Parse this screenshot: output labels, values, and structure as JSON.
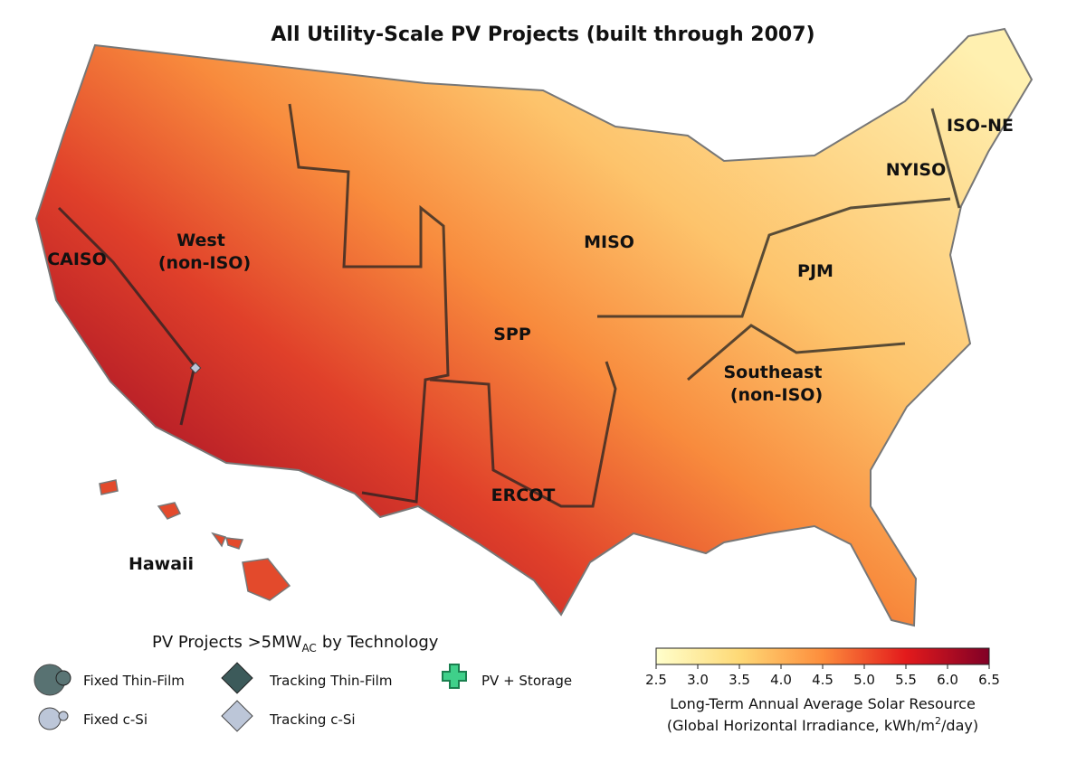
{
  "title": "All Utility-Scale PV Projects (built through 2007)",
  "regions": [
    [
      "CAISO"
    ],
    [
      "West",
      "(non-ISO)"
    ],
    [
      "MISO"
    ],
    [
      "PJM"
    ],
    [
      "NYISO"
    ],
    [
      "ISO-NE"
    ],
    [
      "SPP"
    ],
    [
      "Southeast",
      "(non-ISO)"
    ],
    [
      "ERCOT"
    ],
    [
      "Hawaii"
    ]
  ],
  "legend": {
    "title": [
      "PV Projects >5MW",
      "AC",
      "by Technology"
    ],
    "entries": [
      "Fixed Thin-Film",
      "Fixed c-Si",
      "Tracking Thin-Film",
      "Tracking c-Si",
      "PV + Storage"
    ]
  },
  "colorbar": {
    "lim": [
      2.5,
      6.5
    ],
    "ticks": [
      2.5,
      {
        "value": 3,
        "label": "3.0"
      },
      3.5,
      {
        "value": 4,
        "label": "4.0"
      },
      4.5,
      {
        "value": 5,
        "label": "5.0"
      },
      5.5,
      {
        "value": 6,
        "label": "6.0"
      },
      6.5
    ],
    "label": [
      "Long-Term Annual Average Solar Resource",
      "(Global Horizontal Irradiance, kWh/m",
      "2",
      "/day)"
    ]
  }
}
